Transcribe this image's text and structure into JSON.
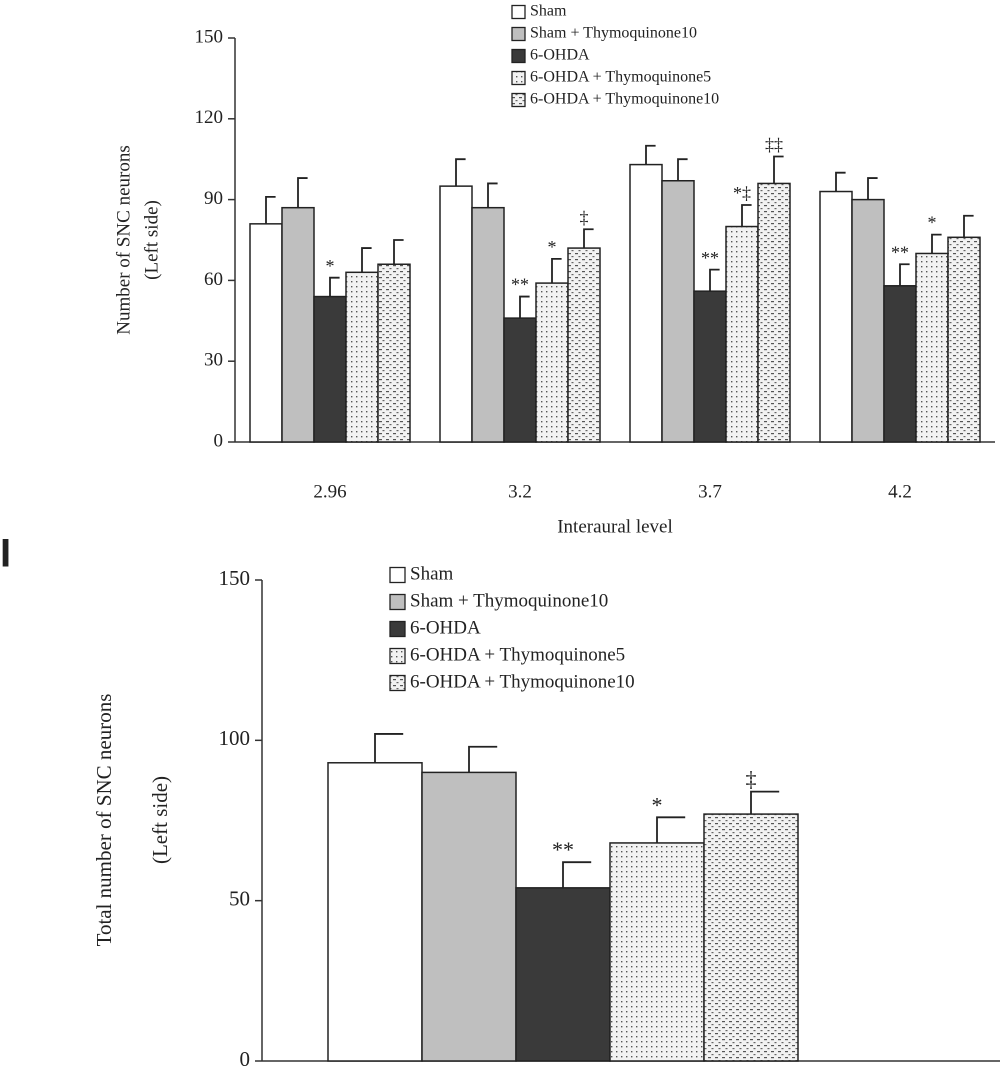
{
  "chart_data": [
    {
      "type": "bar",
      "ylabel": [
        "Number of SNC neurons",
        "(Left side)"
      ],
      "xlabel": "Interaural level",
      "categories": [
        "2.96",
        "3.2",
        "3.7",
        "4.2"
      ],
      "series": [
        {
          "name": "Sham",
          "color": "#ffffff",
          "values": [
            81,
            95,
            103,
            93
          ],
          "errors": [
            10,
            10,
            7,
            7
          ],
          "annotations": [
            null,
            null,
            null,
            null
          ]
        },
        {
          "name": "Sham + Thymoquinone10",
          "color": "#bfbfbf",
          "values": [
            87,
            87,
            97,
            90
          ],
          "errors": [
            11,
            9,
            8,
            8
          ],
          "annotations": [
            null,
            null,
            null,
            null
          ]
        },
        {
          "name": "6-OHDA",
          "color": "#3a3a3a",
          "values": [
            54,
            46,
            56,
            58
          ],
          "errors": [
            7,
            8,
            8,
            8
          ],
          "annotations": [
            "*",
            "**",
            "**",
            "**"
          ]
        },
        {
          "name": "6-OHDA + Thymoquinone5",
          "color": "#e6e6e6",
          "pattern": "dots",
          "values": [
            63,
            59,
            80,
            70
          ],
          "errors": [
            9,
            9,
            8,
            7
          ],
          "annotations": [
            null,
            "*",
            "*‡",
            "*"
          ]
        },
        {
          "name": "6-OHDA + Thymoquinone10",
          "color": "#e6e6e6",
          "pattern": "dashes",
          "values": [
            66,
            72,
            96,
            76
          ],
          "errors": [
            9,
            7,
            10,
            8
          ],
          "annotations": [
            null,
            "‡",
            "‡‡",
            null
          ]
        }
      ],
      "ylim": [
        0,
        150
      ],
      "yticks": [
        0,
        30,
        60,
        90,
        120,
        150
      ],
      "grid": false
    },
    {
      "type": "bar",
      "panel_label": "I",
      "ylabel": [
        "Total number of SNC neurons",
        "(Left side)"
      ],
      "series": [
        {
          "name": "Sham",
          "color": "#ffffff",
          "values": [
            93
          ],
          "errors": [
            9
          ],
          "annotations": [
            null
          ]
        },
        {
          "name": "Sham + Thymoquinone10",
          "color": "#bfbfbf",
          "values": [
            90
          ],
          "errors": [
            8
          ],
          "annotations": [
            null
          ]
        },
        {
          "name": "6-OHDA",
          "color": "#3a3a3a",
          "values": [
            54
          ],
          "errors": [
            8
          ],
          "annotations": [
            "**"
          ]
        },
        {
          "name": "6-OHDA + Thymoquinone5",
          "color": "#e6e6e6",
          "pattern": "dots",
          "values": [
            68
          ],
          "errors": [
            8
          ],
          "annotations": [
            "*"
          ]
        },
        {
          "name": "6-OHDA + Thymoquinone10",
          "color": "#e6e6e6",
          "pattern": "dashes",
          "values": [
            77
          ],
          "errors": [
            7
          ],
          "annotations": [
            "‡"
          ]
        }
      ],
      "ylim": [
        0,
        150
      ],
      "yticks": [
        0,
        50,
        100,
        150
      ],
      "grid": false
    }
  ]
}
